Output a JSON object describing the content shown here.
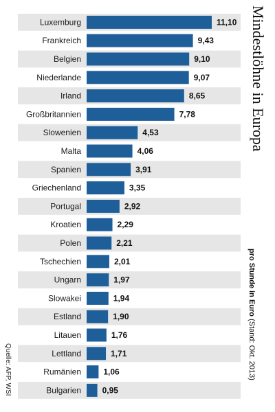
{
  "chart_data": {
    "type": "bar",
    "orientation": "horizontal",
    "title": "Mindestlöhne in Europa",
    "subtitle_bold": "pro Stunde in Euro",
    "subtitle_normal": "(Stand: Okt. 2013)",
    "source": "Quelle: AFP, WSI",
    "categories": [
      "Luxemburg",
      "Frankreich",
      "Belgien",
      "Niederlande",
      "Irland",
      "Großbritannien",
      "Slowenien",
      "Malta",
      "Spanien",
      "Griechenland",
      "Portugal",
      "Kroatien",
      "Polen",
      "Tschechien",
      "Ungarn",
      "Slowakei",
      "Estland",
      "Litauen",
      "Lettland",
      "Rumänien",
      "Bulgarien"
    ],
    "values": [
      11.1,
      9.43,
      9.1,
      9.07,
      8.65,
      7.78,
      4.53,
      4.06,
      3.91,
      3.35,
      2.92,
      2.29,
      2.21,
      2.01,
      1.97,
      1.94,
      1.9,
      1.76,
      1.71,
      1.06,
      0.95
    ],
    "value_labels": [
      "11,10",
      "9,43",
      "9,10",
      "9,07",
      "8,65",
      "7,78",
      "4,53",
      "4,06",
      "3,91",
      "3,35",
      "2,92",
      "2,29",
      "2,21",
      "2,01",
      "1,97",
      "1,94",
      "1,90",
      "1,76",
      "1,71",
      "1,06",
      "0,95"
    ],
    "xlim": [
      0,
      11.1
    ],
    "grid": false,
    "colors": {
      "bar": "#1f5f99",
      "stripe": "#e6e6e6"
    }
  }
}
